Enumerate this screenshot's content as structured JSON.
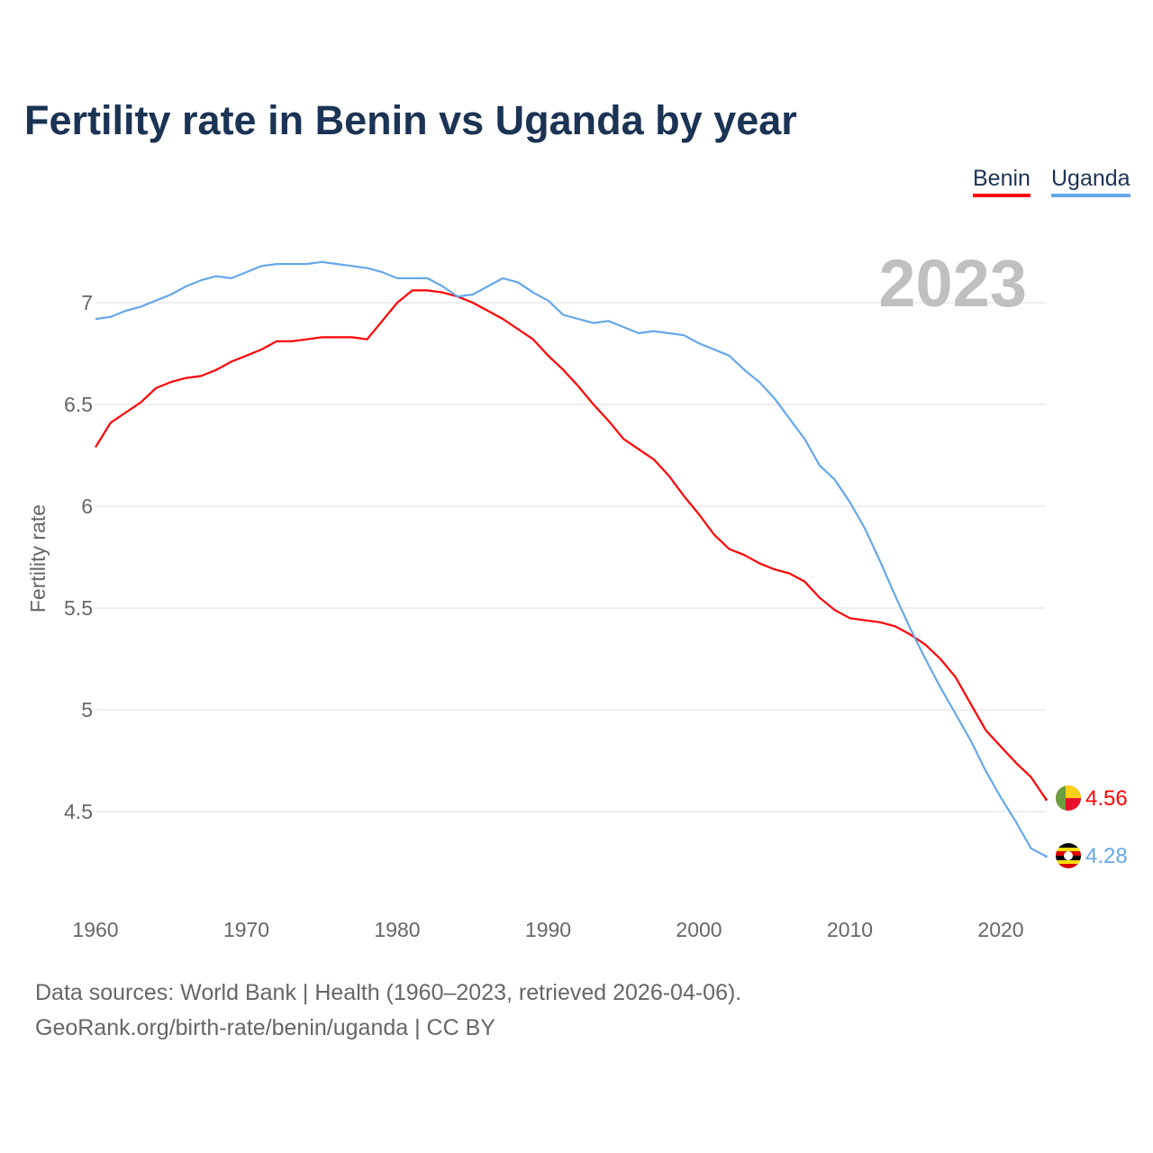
{
  "chart_data": {
    "type": "line",
    "title": "Fertility rate in Benin vs Uganda by year",
    "xlabel": "",
    "ylabel": "Fertility rate",
    "year_label": "2023",
    "x": [
      1960,
      1961,
      1962,
      1963,
      1964,
      1965,
      1966,
      1967,
      1968,
      1969,
      1970,
      1971,
      1972,
      1973,
      1974,
      1975,
      1976,
      1977,
      1978,
      1979,
      1980,
      1981,
      1982,
      1983,
      1984,
      1985,
      1986,
      1987,
      1988,
      1989,
      1990,
      1991,
      1992,
      1993,
      1994,
      1995,
      1996,
      1997,
      1998,
      1999,
      2000,
      2001,
      2002,
      2003,
      2004,
      2005,
      2006,
      2007,
      2008,
      2009,
      2010,
      2011,
      2012,
      2013,
      2014,
      2015,
      2016,
      2017,
      2018,
      2019,
      2020,
      2021,
      2022,
      2023
    ],
    "series": [
      {
        "name": "Benin",
        "color": "#ff0000",
        "end_label": "4.56",
        "values": [
          6.29,
          6.41,
          6.46,
          6.51,
          6.58,
          6.61,
          6.63,
          6.64,
          6.67,
          6.71,
          6.74,
          6.77,
          6.81,
          6.81,
          6.82,
          6.83,
          6.83,
          6.83,
          6.82,
          6.91,
          7.0,
          7.06,
          7.06,
          7.05,
          7.03,
          7.0,
          6.96,
          6.92,
          6.87,
          6.82,
          6.74,
          6.67,
          6.59,
          6.5,
          6.42,
          6.33,
          6.28,
          6.23,
          6.15,
          6.05,
          5.96,
          5.86,
          5.79,
          5.76,
          5.72,
          5.69,
          5.67,
          5.63,
          5.55,
          5.49,
          5.45,
          5.44,
          5.43,
          5.41,
          5.37,
          5.32,
          5.25,
          5.16,
          5.03,
          4.9,
          4.82,
          4.74,
          4.67,
          4.56
        ]
      },
      {
        "name": "Uganda",
        "color": "#64a8eb",
        "end_label": "4.28",
        "values": [
          6.92,
          6.93,
          6.96,
          6.98,
          7.01,
          7.04,
          7.08,
          7.11,
          7.13,
          7.12,
          7.15,
          7.18,
          7.19,
          7.19,
          7.19,
          7.2,
          7.19,
          7.18,
          7.17,
          7.15,
          7.12,
          7.12,
          7.12,
          7.08,
          7.03,
          7.04,
          7.08,
          7.12,
          7.1,
          7.05,
          7.01,
          6.94,
          6.92,
          6.9,
          6.91,
          6.88,
          6.85,
          6.86,
          6.85,
          6.84,
          6.8,
          6.77,
          6.74,
          6.67,
          6.61,
          6.53,
          6.43,
          6.33,
          6.2,
          6.13,
          6.02,
          5.89,
          5.73,
          5.56,
          5.4,
          5.25,
          5.11,
          4.98,
          4.85,
          4.7,
          4.57,
          4.45,
          4.32,
          4.28
        ]
      }
    ],
    "yticks": [
      "4.5",
      "5",
      "5.5",
      "6",
      "6.5",
      "7"
    ],
    "ytick_values": [
      4.5,
      5,
      5.5,
      6,
      6.5,
      7
    ],
    "xticks": [
      "1960",
      "1970",
      "1980",
      "1990",
      "2000",
      "2010",
      "2020"
    ],
    "xtick_values": [
      1960,
      1970,
      1980,
      1990,
      2000,
      2010,
      2020
    ],
    "xlim": [
      1960,
      2023
    ],
    "ylim": [
      4.2,
      7.25
    ],
    "grid": true,
    "legend_placement": "top-right"
  },
  "footer": {
    "line1": "Data sources: World Bank | Health (1960–2023, retrieved 2026-04-06).",
    "line2": "GeoRank.org/birth-rate/benin/uganda | CC BY"
  }
}
